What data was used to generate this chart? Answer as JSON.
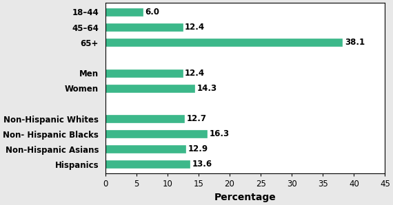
{
  "categories": [
    "Hispanics",
    "Non-Hispanic Asians",
    "Non- Hispanic Blacks",
    "Non-Hispanic Whites",
    "",
    "Women",
    "Men",
    " ",
    "65+",
    "45–64",
    "18–44"
  ],
  "values": [
    13.6,
    12.9,
    16.3,
    12.7,
    null,
    14.3,
    12.4,
    null,
    38.1,
    12.4,
    6.0
  ],
  "bar_color": "#3cb88a",
  "bar_edgecolor": "#3cb88a",
  "xlim": [
    0,
    45
  ],
  "xticks": [
    0,
    5,
    10,
    15,
    20,
    25,
    30,
    35,
    40,
    45
  ],
  "xlabel": "Percentage",
  "xlabel_fontsize": 10,
  "tick_fontsize": 8.5,
  "label_fontsize": 8.5,
  "value_fontsize": 8.5,
  "bar_height": 0.5,
  "background_color": "#e8e8e8",
  "plot_bg_color": "#ffffff"
}
